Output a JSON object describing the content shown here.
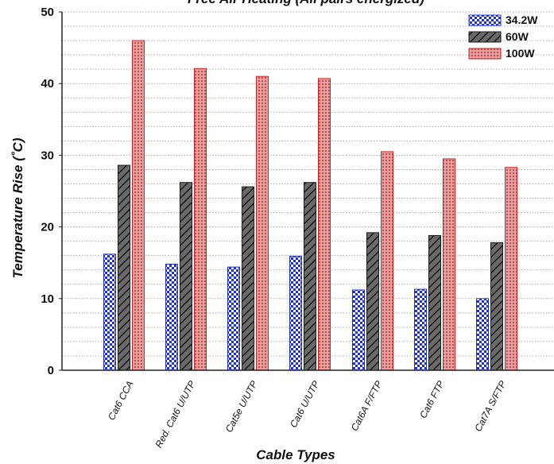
{
  "chart_data": {
    "type": "bar",
    "title": "Free Air Heating (All pairs energized)",
    "xlabel": "Cable Types",
    "ylabel": "Temperature Rise (˚C)",
    "ylim": [
      0,
      50
    ],
    "yticks": [
      0,
      10,
      20,
      30,
      40,
      50
    ],
    "grid": "horizontal dotted",
    "legend_position": "top-right",
    "categories": [
      "Cat6 CCA",
      "Red. Cat6 U/UTP",
      "Cat5e U/UTP",
      "Cat6 U/UTP",
      "Cat6A F/FTP",
      "Cat6 FTP",
      "Cat7A S/FTP"
    ],
    "series": [
      {
        "name": "34.2W",
        "color": "#1f2fd8",
        "pattern": "checker",
        "values": [
          16.2,
          14.8,
          14.4,
          15.9,
          11.2,
          11.3,
          10.0
        ]
      },
      {
        "name": "60W",
        "color": "#555555",
        "pattern": "diagonal-hatch",
        "values": [
          28.6,
          26.2,
          25.6,
          26.2,
          19.2,
          18.8,
          17.8
        ]
      },
      {
        "name": "100W",
        "color": "#d42020",
        "pattern": "dotted",
        "values": [
          46.0,
          42.1,
          41.0,
          40.7,
          30.5,
          29.5,
          28.3
        ]
      }
    ]
  }
}
